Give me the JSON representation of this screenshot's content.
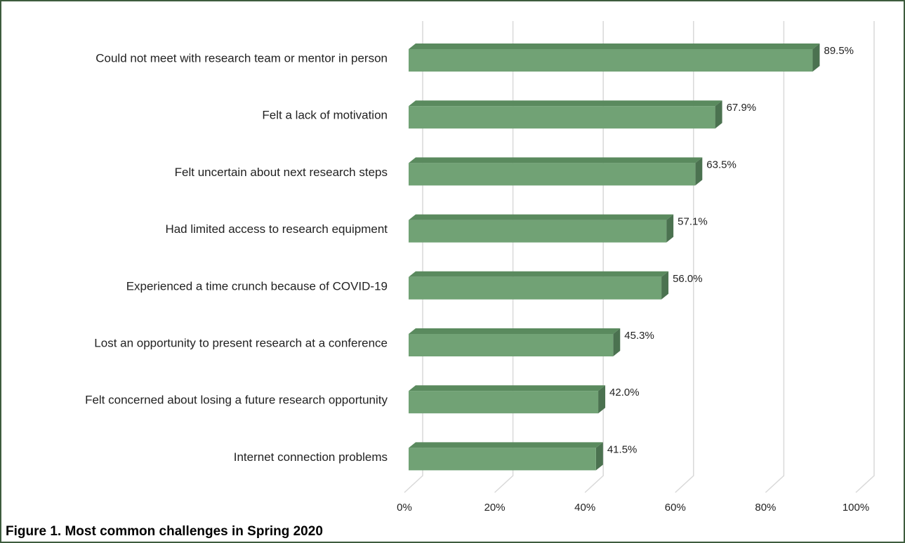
{
  "chart_data": {
    "type": "bar",
    "orientation": "horizontal",
    "title": "Figure 1. Most common challenges in Spring 2020",
    "categories": [
      "Could not meet with research team or mentor in person",
      "Felt a lack of motivation",
      "Felt uncertain about next research steps",
      "Had limited access to research equipment",
      "Experienced a time crunch because of COVID-19",
      "Lost an opportunity to present research at a conference",
      "Felt concerned about losing a future research opportunity",
      "Internet connection problems"
    ],
    "values": [
      89.5,
      67.9,
      63.5,
      57.1,
      56.0,
      45.3,
      42.0,
      41.5
    ],
    "value_labels": [
      "89.5%",
      "67.9%",
      "63.5%",
      "57.1%",
      "56.0%",
      "45.3%",
      "42.0%",
      "41.5%"
    ],
    "color": "#71a275",
    "xlim": [
      0,
      100
    ],
    "xticks": [
      {
        "value": 0,
        "label": "0%"
      },
      {
        "value": 20,
        "label": "20%"
      },
      {
        "value": 40,
        "label": "40%"
      },
      {
        "value": 60,
        "label": "60%"
      },
      {
        "value": 80,
        "label": "80%"
      },
      {
        "value": 100,
        "label": "100%"
      }
    ],
    "grid": true
  }
}
